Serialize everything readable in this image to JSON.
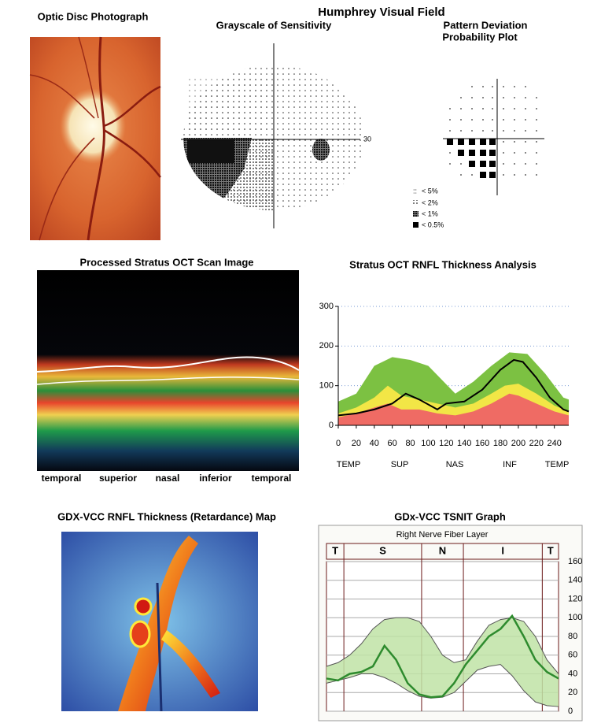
{
  "optic_disc": {
    "title": "Optic Disc Photograph"
  },
  "visual_field": {
    "title": "Humphrey Visual Field",
    "grayscale": {
      "title": "Grayscale of Sensitivity",
      "axis_label": "30"
    },
    "pattern_deviation": {
      "title": [
        "Pattern Deviation",
        "Probability Plot"
      ],
      "legend": [
        "< 5%",
        "< 2%",
        "< 1%",
        "< 0.5%"
      ]
    }
  },
  "oct_scan": {
    "title": "Processed Stratus OCT Scan Image",
    "labels": [
      "temporal",
      "superior",
      "nasal",
      "inferior",
      "temporal"
    ]
  },
  "gdx_map": {
    "title": "GDX-VCC RNFL Thickness (Retardance) Map"
  },
  "chart_data": [
    {
      "type": "area",
      "title": "Stratus OCT RNFL Thickness Analysis",
      "xlim": [
        0,
        256
      ],
      "xticks": [
        0,
        20,
        40,
        60,
        80,
        100,
        120,
        140,
        160,
        180,
        200,
        220,
        240
      ],
      "ylim": [
        0,
        300
      ],
      "yticks": [
        0,
        100,
        200,
        300
      ],
      "grid": true,
      "sections": [
        "TEMP",
        "SUP",
        "NAS",
        "INF",
        "TEMP"
      ],
      "series": [
        {
          "type": "area",
          "color": "#7cc142",
          "x": [
            0,
            20,
            40,
            60,
            80,
            100,
            115,
            130,
            150,
            170,
            190,
            210,
            230,
            250,
            256
          ],
          "values": [
            60,
            80,
            150,
            172,
            165,
            150,
            115,
            80,
            110,
            150,
            184,
            180,
            130,
            70,
            65
          ]
        },
        {
          "type": "area",
          "color": "#f2e646",
          "x": [
            0,
            20,
            40,
            55,
            70,
            90,
            110,
            130,
            150,
            170,
            185,
            200,
            220,
            240,
            256
          ],
          "values": [
            30,
            45,
            70,
            100,
            75,
            65,
            55,
            45,
            55,
            80,
            100,
            105,
            80,
            50,
            35
          ]
        },
        {
          "type": "area",
          "color": "#ef6b64",
          "x": [
            0,
            20,
            40,
            55,
            70,
            90,
            110,
            130,
            150,
            170,
            190,
            200,
            220,
            240,
            256
          ],
          "values": [
            20,
            30,
            45,
            55,
            40,
            40,
            30,
            25,
            35,
            55,
            80,
            75,
            55,
            35,
            25
          ]
        },
        {
          "type": "line",
          "color": "#000000",
          "x": [
            0,
            20,
            40,
            60,
            75,
            90,
            110,
            120,
            140,
            160,
            180,
            195,
            205,
            220,
            235,
            250,
            256
          ],
          "values": [
            25,
            30,
            40,
            55,
            80,
            65,
            40,
            55,
            60,
            90,
            140,
            165,
            160,
            120,
            70,
            40,
            35
          ]
        }
      ]
    },
    {
      "type": "line",
      "title": "GDx-VCC TSNIT Graph",
      "subtitle": "Right Nerve Fiber Layer",
      "sectors": [
        "T",
        "S",
        "N",
        "I",
        "T"
      ],
      "ylim": [
        0,
        160
      ],
      "yticks": [
        0,
        20,
        40,
        60,
        80,
        100,
        120,
        140,
        160
      ],
      "grid": true,
      "band_fill": "#bfe3a6",
      "series": [
        {
          "color": "#555555",
          "values": [
            48,
            52,
            60,
            72,
            88,
            98,
            100,
            100,
            96,
            80,
            60,
            52,
            55,
            75,
            92,
            98,
            100,
            96,
            80,
            55,
            40
          ]
        },
        {
          "color": "#555555",
          "values": [
            30,
            33,
            36,
            40,
            40,
            36,
            30,
            22,
            16,
            14,
            15,
            20,
            32,
            44,
            48,
            50,
            38,
            22,
            10,
            6,
            5
          ]
        },
        {
          "color": "#2e8b2e",
          "values": [
            35,
            33,
            40,
            42,
            48,
            70,
            55,
            30,
            18,
            15,
            16,
            30,
            50,
            65,
            80,
            88,
            102,
            80,
            55,
            42,
            35
          ]
        }
      ]
    }
  ]
}
